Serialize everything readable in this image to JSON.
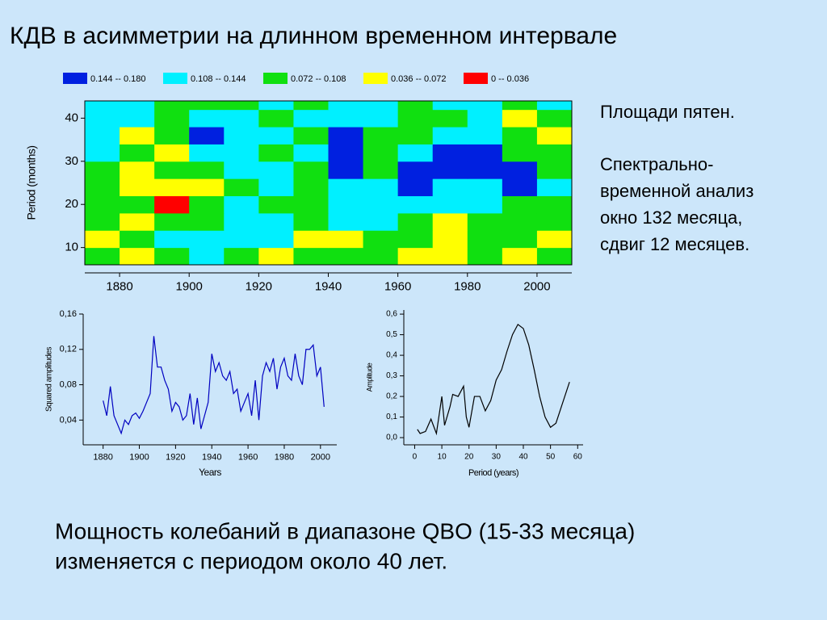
{
  "slide": {
    "title": "КДВ в асимметрии на длинном временном интервале",
    "notes": [
      "Площади пятен.",
      "Спектрально-",
      "временной анализ",
      "окно 132 месяца,",
      "сдвиг 12 месяцев."
    ],
    "conclusion": [
      "Мощность колебаний в диапазоне QBO (15-33 месяца)",
      "изменяется с периодом около 40 лет."
    ]
  },
  "chart_data": [
    {
      "type": "contour",
      "ylabel": "Period (months)",
      "legend": [
        {
          "label": "0.144  --  0.180",
          "color": "#0020e0",
          "range": [
            0.144,
            0.18
          ]
        },
        {
          "label": "0.108  --  0.144",
          "color": "#00f0ff",
          "range": [
            0.108,
            0.144
          ]
        },
        {
          "label": "0.072  --  0.108",
          "color": "#10e010",
          "range": [
            0.072,
            0.108
          ]
        },
        {
          "label": "0.036  --  0.072",
          "color": "#ffff00",
          "range": [
            0.036,
            0.072
          ]
        },
        {
          "label": "0  --  0.036",
          "color": "#ff0000",
          "range": [
            0,
            0.036
          ]
        }
      ],
      "x": [
        1875,
        1885,
        1895,
        1905,
        1915,
        1925,
        1935,
        1945,
        1955,
        1965,
        1975,
        1985,
        1995,
        2005
      ],
      "y": [
        8,
        12,
        16,
        20,
        24,
        28,
        32,
        36,
        40,
        44
      ],
      "values": [
        [
          0.09,
          0.054,
          0.09,
          0.126,
          0.09,
          0.054,
          0.09,
          0.09,
          0.09,
          0.054,
          0.054,
          0.09,
          0.054,
          0.09
        ],
        [
          0.054,
          0.09,
          0.126,
          0.126,
          0.126,
          0.126,
          0.054,
          0.054,
          0.09,
          0.09,
          0.054,
          0.09,
          0.09,
          0.054
        ],
        [
          0.09,
          0.054,
          0.09,
          0.09,
          0.126,
          0.126,
          0.09,
          0.126,
          0.126,
          0.09,
          0.054,
          0.09,
          0.09,
          0.09
        ],
        [
          0.09,
          0.09,
          0.018,
          0.09,
          0.126,
          0.09,
          0.09,
          0.126,
          0.126,
          0.126,
          0.126,
          0.126,
          0.09,
          0.09
        ],
        [
          0.09,
          0.054,
          0.054,
          0.054,
          0.09,
          0.126,
          0.09,
          0.126,
          0.126,
          0.162,
          0.126,
          0.126,
          0.162,
          0.126
        ],
        [
          0.09,
          0.054,
          0.09,
          0.09,
          0.126,
          0.126,
          0.09,
          0.162,
          0.09,
          0.162,
          0.162,
          0.162,
          0.162,
          0.09
        ],
        [
          0.126,
          0.09,
          0.054,
          0.126,
          0.126,
          0.09,
          0.126,
          0.162,
          0.09,
          0.126,
          0.162,
          0.162,
          0.09,
          0.09
        ],
        [
          0.126,
          0.054,
          0.09,
          0.162,
          0.126,
          0.126,
          0.09,
          0.162,
          0.09,
          0.09,
          0.126,
          0.126,
          0.09,
          0.054
        ],
        [
          0.126,
          0.126,
          0.09,
          0.126,
          0.126,
          0.09,
          0.126,
          0.126,
          0.126,
          0.09,
          0.09,
          0.126,
          0.054,
          0.09
        ],
        [
          0.126,
          0.126,
          0.09,
          0.09,
          0.09,
          0.126,
          0.09,
          0.126,
          0.126,
          0.09,
          0.126,
          0.126,
          0.09,
          0.126
        ]
      ],
      "xlim": [
        1870,
        2010
      ],
      "ylim": [
        6,
        44
      ],
      "xticks": [
        1880,
        1900,
        1920,
        1940,
        1960,
        1980,
        2000
      ],
      "yticks": [
        10,
        20,
        30,
        40
      ]
    },
    {
      "type": "line",
      "xlabel": "Years",
      "ylabel": "Squared amplitudes",
      "color": "#0000c0",
      "x": [
        1880,
        1882,
        1884,
        1886,
        1888,
        1890,
        1892,
        1894,
        1896,
        1898,
        1900,
        1902,
        1904,
        1906,
        1908,
        1910,
        1912,
        1914,
        1916,
        1918,
        1920,
        1922,
        1924,
        1926,
        1928,
        1930,
        1932,
        1934,
        1936,
        1938,
        1940,
        1942,
        1944,
        1946,
        1948,
        1950,
        1952,
        1954,
        1956,
        1958,
        1960,
        1962,
        1964,
        1966,
        1968,
        1970,
        1972,
        1974,
        1976,
        1978,
        1980,
        1982,
        1984,
        1986,
        1988,
        1990,
        1992,
        1994,
        1996,
        1998,
        2000,
        2002
      ],
      "values": [
        0.062,
        0.045,
        0.078,
        0.045,
        0.035,
        0.025,
        0.04,
        0.035,
        0.045,
        0.048,
        0.042,
        0.05,
        0.06,
        0.07,
        0.135,
        0.1,
        0.1,
        0.085,
        0.075,
        0.05,
        0.06,
        0.055,
        0.04,
        0.045,
        0.07,
        0.035,
        0.065,
        0.03,
        0.045,
        0.06,
        0.115,
        0.095,
        0.105,
        0.09,
        0.085,
        0.095,
        0.07,
        0.075,
        0.05,
        0.06,
        0.07,
        0.045,
        0.085,
        0.04,
        0.09,
        0.105,
        0.095,
        0.11,
        0.075,
        0.1,
        0.11,
        0.09,
        0.085,
        0.115,
        0.09,
        0.08,
        0.12,
        0.12,
        0.125,
        0.09,
        0.1,
        0.055
      ],
      "xlim": [
        1869,
        2009
      ],
      "ylim": [
        0.012,
        0.16
      ],
      "xticks": [
        1880,
        1900,
        1920,
        1940,
        1960,
        1980,
        2000
      ],
      "yticks": [
        {
          "value": 0.04,
          "label": "0,04"
        },
        {
          "value": 0.08,
          "label": "0,08"
        },
        {
          "value": 0.12,
          "label": "0,12"
        },
        {
          "value": 0.16,
          "label": "0,16"
        }
      ]
    },
    {
      "type": "line",
      "xlabel": "Period (years)",
      "ylabel": "Amplitude",
      "color": "#000000",
      "x": [
        1,
        2,
        4,
        6,
        8,
        10,
        11,
        13,
        14,
        16,
        18,
        19,
        20,
        22,
        24,
        26,
        28,
        30,
        32,
        34,
        36,
        38,
        40,
        42,
        44,
        46,
        48,
        50,
        52,
        54,
        57
      ],
      "values": [
        0.04,
        0.02,
        0.03,
        0.09,
        0.02,
        0.2,
        0.06,
        0.15,
        0.21,
        0.2,
        0.25,
        0.1,
        0.05,
        0.2,
        0.2,
        0.13,
        0.18,
        0.28,
        0.33,
        0.42,
        0.5,
        0.55,
        0.53,
        0.45,
        0.33,
        0.2,
        0.1,
        0.05,
        0.07,
        0.15,
        0.27
      ],
      "xlim": [
        -4,
        62
      ],
      "ylim": [
        -0.035,
        0.62
      ],
      "xticks": [
        0,
        10,
        20,
        30,
        40,
        50,
        60
      ],
      "yticks": [
        {
          "value": 0,
          "label": "0,0"
        },
        {
          "value": 0.1,
          "label": "0,1"
        },
        {
          "value": 0.2,
          "label": "0,2"
        },
        {
          "value": 0.3,
          "label": "0,3"
        },
        {
          "value": 0.4,
          "label": "0,4"
        },
        {
          "value": 0.5,
          "label": "0,5"
        },
        {
          "value": 0.6,
          "label": "0,6"
        }
      ]
    }
  ]
}
